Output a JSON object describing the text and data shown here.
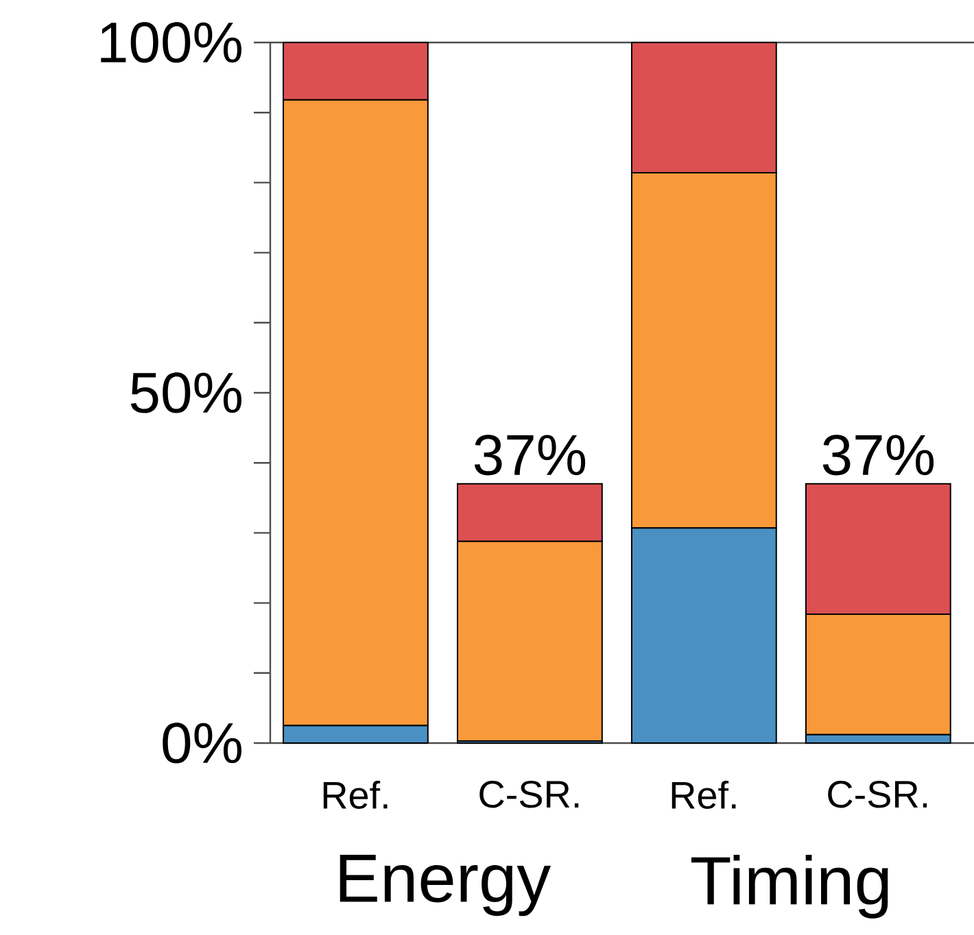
{
  "chart_data": {
    "type": "bar",
    "stacked": true,
    "categories": [
      "Ref.",
      "C-SR.",
      "Ref.",
      "C-SR."
    ],
    "series": [
      {
        "color": "#4a90c2",
        "values": [
          2.5,
          0.3,
          30.7,
          1.2
        ]
      },
      {
        "color": "#f9993a",
        "values": [
          89.3,
          28.5,
          50.7,
          17.2
        ]
      },
      {
        "color": "#dc5052",
        "values": [
          8.2,
          8.2,
          18.6,
          18.6
        ]
      }
    ],
    "ylim": [
      0,
      100
    ],
    "yticks": [
      {
        "value": 0,
        "label": "0%"
      },
      {
        "value": 10,
        "label": null
      },
      {
        "value": 20,
        "label": null
      },
      {
        "value": 30,
        "label": null
      },
      {
        "value": 40,
        "label": null
      },
      {
        "value": 50,
        "label": "50%"
      },
      {
        "value": 60,
        "label": null
      },
      {
        "value": 70,
        "label": null
      },
      {
        "value": 80,
        "label": null
      },
      {
        "value": 90,
        "label": null
      },
      {
        "value": 100,
        "label": "100%"
      }
    ],
    "totals": [
      null,
      "37%",
      null,
      "37%"
    ],
    "annotations": [
      "Energy",
      "Timing"
    ]
  }
}
